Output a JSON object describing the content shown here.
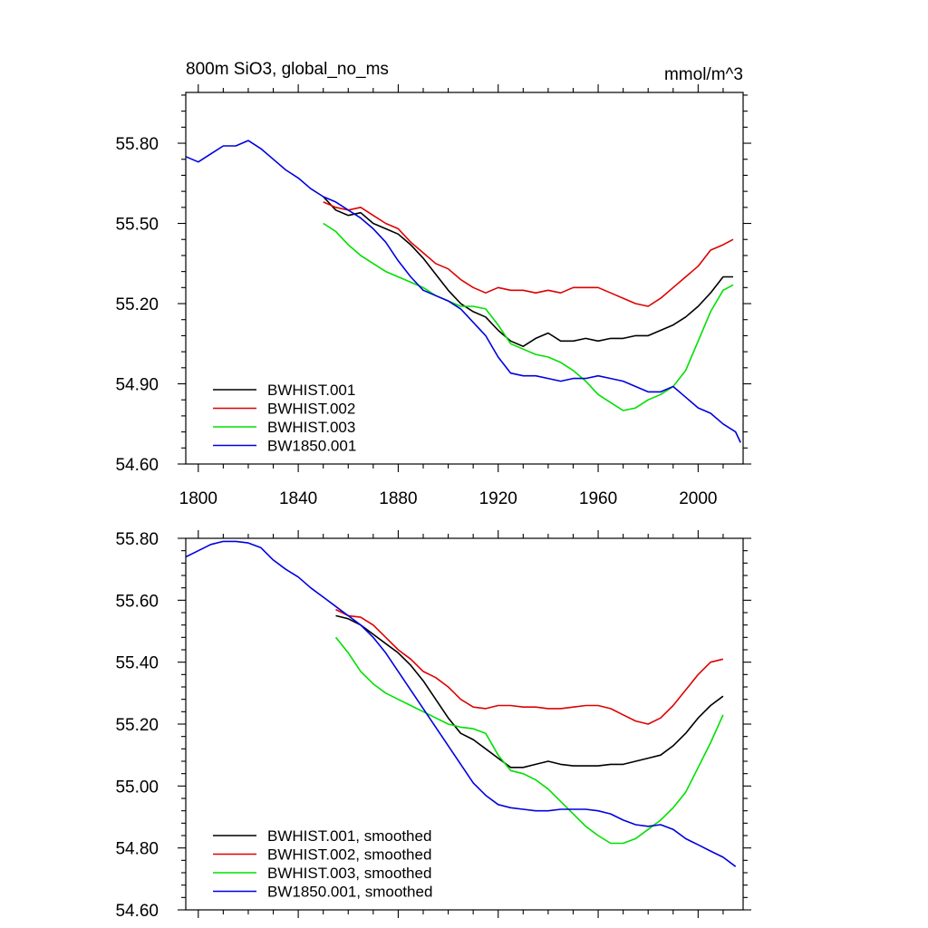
{
  "colors": {
    "BWHIST.001": "#000000",
    "BWHIST.002": "#e00000",
    "BWHIST.003": "#00e000",
    "BW1850.001": "#0000e0"
  },
  "chart_data": [
    {
      "type": "line",
      "title": "800m SiO3, global_no_ms",
      "units": "mmol/m^3",
      "xlabel": "",
      "ylabel": "",
      "xlim": [
        1795,
        2018
      ],
      "ylim": [
        54.6,
        55.99
      ],
      "xticks": [
        1800,
        1840,
        1880,
        1920,
        1960,
        2000
      ],
      "xtick_labels": [
        "1800",
        "1840",
        "1880",
        "1920",
        "1960",
        "2000"
      ],
      "yticks": [
        54.6,
        54.9,
        55.2,
        55.5,
        55.8
      ],
      "ytick_labels": [
        "54.60",
        "54.90",
        "55.20",
        "55.50",
        "55.80"
      ],
      "legend": {
        "placement": "bottom-left",
        "entries": [
          "BWHIST.001",
          "BWHIST.002",
          "BWHIST.003",
          "BW1850.001"
        ]
      },
      "series": [
        {
          "name": "BWHIST.001",
          "x": [
            1850,
            1855,
            1860,
            1865,
            1870,
            1875,
            1880,
            1885,
            1890,
            1895,
            1900,
            1905,
            1910,
            1915,
            1920,
            1925,
            1930,
            1935,
            1940,
            1945,
            1950,
            1955,
            1960,
            1965,
            1970,
            1975,
            1980,
            1985,
            1990,
            1995,
            2000,
            2005,
            2010,
            2014
          ],
          "y": [
            55.6,
            55.55,
            55.53,
            55.54,
            55.5,
            55.48,
            55.46,
            55.42,
            55.37,
            55.31,
            55.25,
            55.2,
            55.17,
            55.15,
            55.1,
            55.06,
            55.04,
            55.07,
            55.09,
            55.06,
            55.06,
            55.07,
            55.06,
            55.07,
            55.07,
            55.08,
            55.08,
            55.1,
            55.12,
            55.15,
            55.19,
            55.24,
            55.3,
            55.3
          ]
        },
        {
          "name": "BWHIST.002",
          "x": [
            1850,
            1855,
            1860,
            1865,
            1870,
            1875,
            1880,
            1885,
            1890,
            1895,
            1900,
            1905,
            1910,
            1915,
            1920,
            1925,
            1930,
            1935,
            1940,
            1945,
            1950,
            1955,
            1960,
            1965,
            1970,
            1975,
            1980,
            1985,
            1990,
            1995,
            2000,
            2005,
            2010,
            2014
          ],
          "y": [
            55.58,
            55.56,
            55.55,
            55.56,
            55.53,
            55.5,
            55.48,
            55.43,
            55.39,
            55.35,
            55.33,
            55.29,
            55.26,
            55.24,
            55.26,
            55.25,
            55.25,
            55.24,
            55.25,
            55.24,
            55.26,
            55.26,
            55.26,
            55.24,
            55.22,
            55.2,
            55.19,
            55.22,
            55.26,
            55.3,
            55.34,
            55.4,
            55.42,
            55.44
          ]
        },
        {
          "name": "BWHIST.003",
          "x": [
            1850,
            1855,
            1860,
            1865,
            1870,
            1875,
            1880,
            1885,
            1890,
            1895,
            1900,
            1905,
            1910,
            1915,
            1920,
            1925,
            1930,
            1935,
            1940,
            1945,
            1950,
            1955,
            1960,
            1965,
            1970,
            1975,
            1980,
            1985,
            1990,
            1995,
            2000,
            2005,
            2010,
            2014
          ],
          "y": [
            55.5,
            55.47,
            55.42,
            55.38,
            55.35,
            55.32,
            55.3,
            55.28,
            55.26,
            55.23,
            55.21,
            55.19,
            55.19,
            55.18,
            55.12,
            55.05,
            55.03,
            55.01,
            55.0,
            54.98,
            54.95,
            54.91,
            54.86,
            54.83,
            54.8,
            54.81,
            54.84,
            54.86,
            54.89,
            54.95,
            55.06,
            55.17,
            55.25,
            55.27
          ]
        },
        {
          "name": "BW1850.001",
          "x": [
            1795,
            1800,
            1805,
            1810,
            1815,
            1820,
            1825,
            1830,
            1835,
            1840,
            1845,
            1850,
            1855,
            1860,
            1865,
            1870,
            1875,
            1880,
            1885,
            1890,
            1895,
            1900,
            1905,
            1910,
            1915,
            1920,
            1925,
            1930,
            1935,
            1940,
            1945,
            1950,
            1955,
            1960,
            1965,
            1970,
            1975,
            1980,
            1985,
            1990,
            1995,
            2000,
            2005,
            2010,
            2015,
            2017
          ],
          "y": [
            55.75,
            55.73,
            55.76,
            55.79,
            55.79,
            55.81,
            55.78,
            55.74,
            55.7,
            55.67,
            55.63,
            55.6,
            55.58,
            55.55,
            55.52,
            55.48,
            55.43,
            55.36,
            55.3,
            55.25,
            55.23,
            55.21,
            55.18,
            55.13,
            55.08,
            55.0,
            54.94,
            54.93,
            54.93,
            54.92,
            54.91,
            54.92,
            54.92,
            54.93,
            54.92,
            54.91,
            54.89,
            54.87,
            54.87,
            54.89,
            54.85,
            54.81,
            54.79,
            54.75,
            54.72,
            54.68
          ]
        }
      ]
    },
    {
      "type": "line",
      "title": "",
      "xlabel": "",
      "ylabel": "",
      "xlim": [
        1795,
        2018
      ],
      "ylim": [
        54.6,
        55.8
      ],
      "xticks": [
        1800,
        1840,
        1880,
        1920,
        1960,
        2000
      ],
      "yticks": [
        54.6,
        54.8,
        55.0,
        55.2,
        55.4,
        55.6,
        55.8
      ],
      "ytick_labels": [
        "54.60",
        "54.80",
        "55.00",
        "55.20",
        "55.40",
        "55.60",
        "55.80"
      ],
      "legend": {
        "placement": "bottom-left",
        "entries": [
          "BWHIST.001, smoothed",
          "BWHIST.002, smoothed",
          "BWHIST.003, smoothed",
          "BW1850.001, smoothed"
        ]
      },
      "series": [
        {
          "name": "BWHIST.001, smoothed",
          "x": [
            1855,
            1860,
            1865,
            1870,
            1875,
            1880,
            1885,
            1890,
            1895,
            1900,
            1905,
            1910,
            1915,
            1920,
            1925,
            1930,
            1935,
            1940,
            1945,
            1950,
            1955,
            1960,
            1965,
            1970,
            1975,
            1980,
            1985,
            1990,
            1995,
            2000,
            2005,
            2010
          ],
          "y": [
            55.55,
            55.54,
            55.52,
            55.49,
            55.46,
            55.43,
            55.39,
            55.34,
            55.28,
            55.22,
            55.17,
            55.15,
            55.12,
            55.09,
            55.06,
            55.06,
            55.07,
            55.08,
            55.07,
            55.065,
            55.065,
            55.065,
            55.07,
            55.07,
            55.08,
            55.09,
            55.1,
            55.13,
            55.17,
            55.22,
            55.26,
            55.29
          ]
        },
        {
          "name": "BWHIST.002, smoothed",
          "x": [
            1855,
            1860,
            1865,
            1870,
            1875,
            1880,
            1885,
            1890,
            1895,
            1900,
            1905,
            1910,
            1915,
            1920,
            1925,
            1930,
            1935,
            1940,
            1945,
            1950,
            1955,
            1960,
            1965,
            1970,
            1975,
            1980,
            1985,
            1990,
            1995,
            2000,
            2005,
            2010
          ],
          "y": [
            55.57,
            55.55,
            55.545,
            55.52,
            55.48,
            55.44,
            55.41,
            55.37,
            55.35,
            55.32,
            55.28,
            55.255,
            55.25,
            55.26,
            55.26,
            55.255,
            55.255,
            55.25,
            55.25,
            55.255,
            55.26,
            55.26,
            55.25,
            55.23,
            55.21,
            55.2,
            55.22,
            55.26,
            55.31,
            55.36,
            55.4,
            55.41
          ]
        },
        {
          "name": "BWHIST.003, smoothed",
          "x": [
            1855,
            1860,
            1865,
            1870,
            1875,
            1880,
            1885,
            1890,
            1895,
            1900,
            1905,
            1910,
            1915,
            1920,
            1925,
            1930,
            1935,
            1940,
            1945,
            1950,
            1955,
            1960,
            1965,
            1970,
            1975,
            1980,
            1985,
            1990,
            1995,
            2000,
            2005,
            2010
          ],
          "y": [
            55.48,
            55.43,
            55.37,
            55.33,
            55.3,
            55.28,
            55.26,
            55.24,
            55.22,
            55.2,
            55.19,
            55.185,
            55.17,
            55.1,
            55.05,
            55.04,
            55.02,
            54.99,
            54.95,
            54.91,
            54.87,
            54.84,
            54.815,
            54.815,
            54.83,
            54.86,
            54.89,
            54.93,
            54.98,
            55.06,
            55.14,
            55.23
          ]
        },
        {
          "name": "BW1850.001, smoothed",
          "x": [
            1795,
            1800,
            1805,
            1810,
            1815,
            1820,
            1825,
            1830,
            1835,
            1840,
            1845,
            1850,
            1855,
            1860,
            1865,
            1870,
            1875,
            1880,
            1885,
            1890,
            1895,
            1900,
            1905,
            1910,
            1915,
            1920,
            1925,
            1930,
            1935,
            1940,
            1945,
            1950,
            1955,
            1960,
            1965,
            1970,
            1975,
            1980,
            1985,
            1990,
            1995,
            2000,
            2005,
            2010,
            2015
          ],
          "y": [
            55.74,
            55.76,
            55.78,
            55.79,
            55.79,
            55.785,
            55.77,
            55.73,
            55.7,
            55.675,
            55.64,
            55.61,
            55.58,
            55.55,
            55.52,
            55.48,
            55.43,
            55.37,
            55.31,
            55.25,
            55.19,
            55.13,
            55.07,
            55.01,
            54.97,
            54.94,
            54.93,
            54.925,
            54.92,
            54.92,
            54.925,
            54.925,
            54.925,
            54.92,
            54.91,
            54.89,
            54.875,
            54.87,
            54.875,
            54.86,
            54.83,
            54.81,
            54.79,
            54.77,
            54.74
          ]
        }
      ]
    }
  ]
}
